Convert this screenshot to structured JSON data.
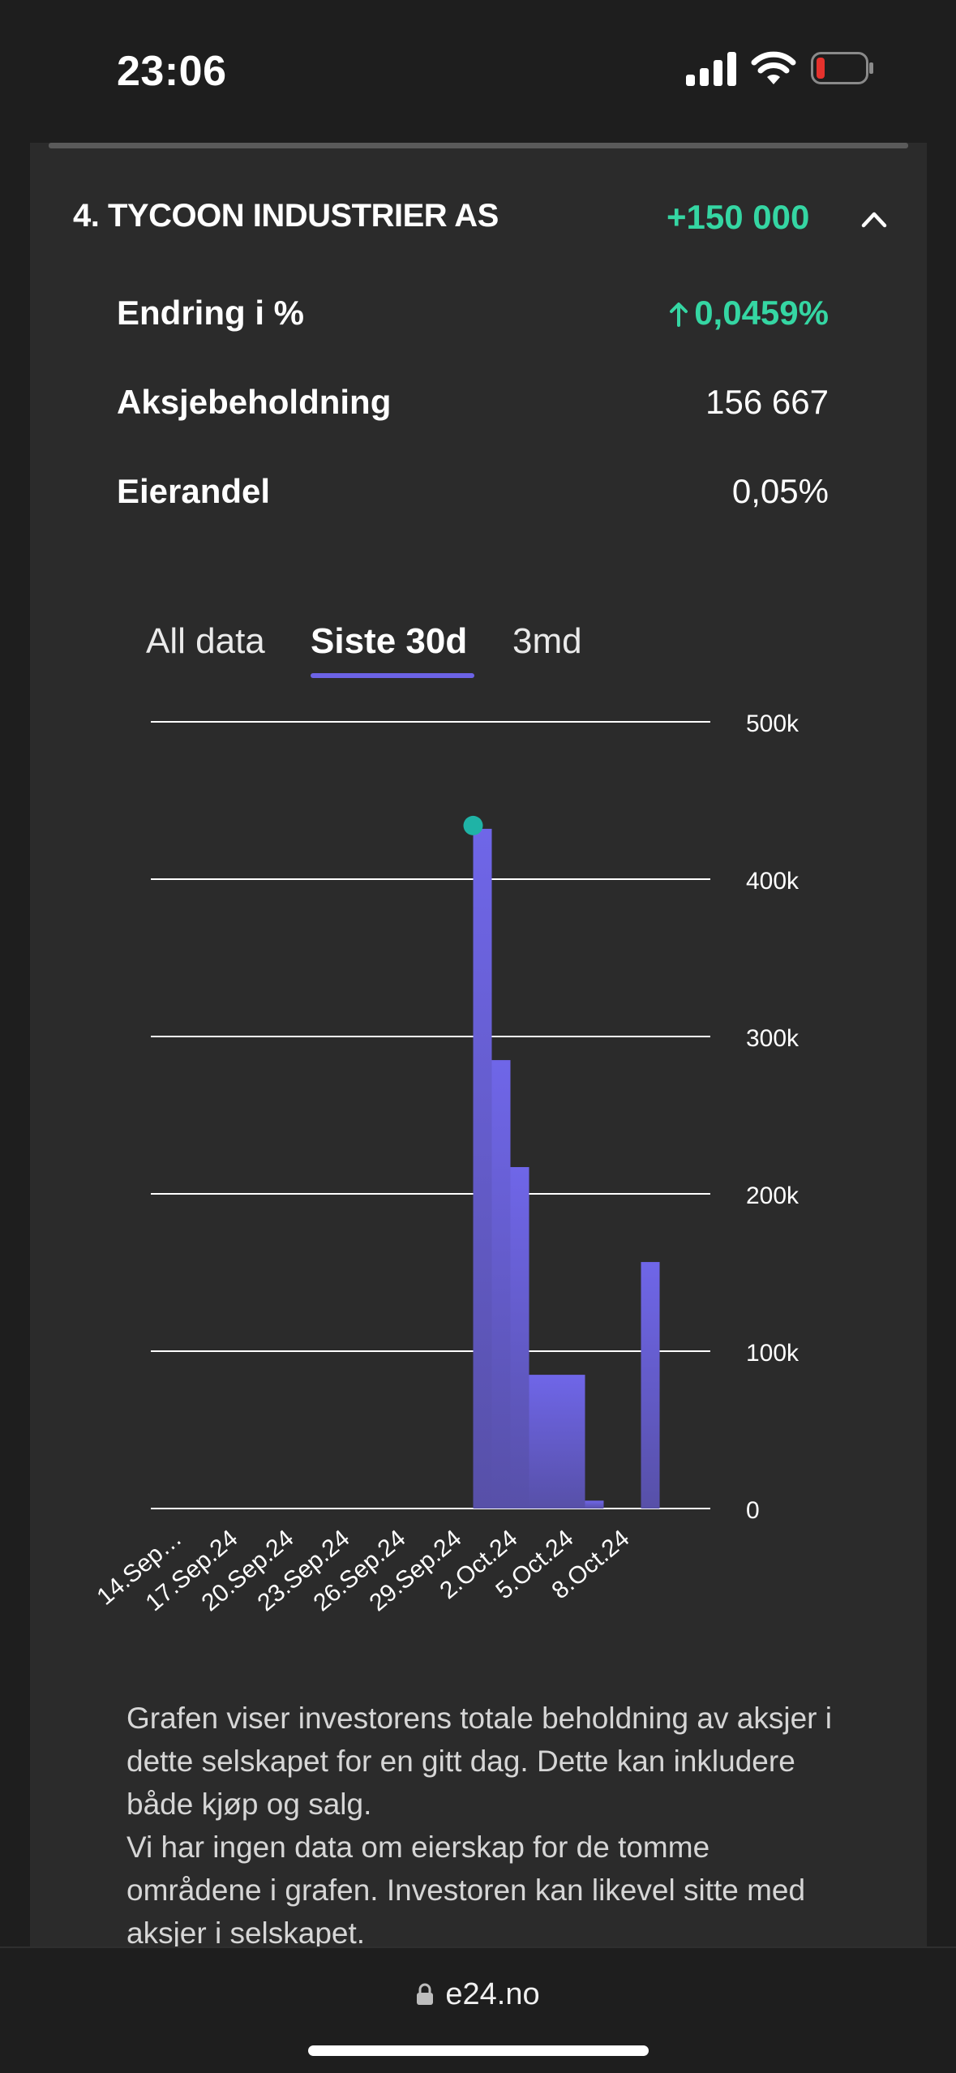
{
  "status_bar": {
    "time": "23:06",
    "icons": [
      "cellular-signal-icon",
      "wifi-icon",
      "battery-low-icon"
    ],
    "battery_color": "#e5322d"
  },
  "holding": {
    "title": "4. TYCOON INDUSTRIER AS",
    "change_abs": "+150 000",
    "expand_icon": "chevron-up-icon",
    "rows": [
      {
        "label": "Endring i %",
        "value": "0,0459%",
        "icon": "arrow-up-icon"
      },
      {
        "label": "Aksjebeholdning",
        "value": "156 667"
      },
      {
        "label": "Eierandel",
        "value": "0,05%"
      }
    ],
    "accent_green": "#35d6a3"
  },
  "tabs": [
    {
      "label": "All data",
      "active": false
    },
    {
      "label": "Siste 30d",
      "active": true
    },
    {
      "label": "3md",
      "active": false
    }
  ],
  "chart_data": {
    "type": "bar",
    "x_tick_labels": [
      "14.Sep…",
      "17.Sep.24",
      "20.Sep.24",
      "23.Sep.24",
      "26.Sep.24",
      "29.Sep.24",
      "2.Oct.24",
      "5.Oct.24",
      "8.Oct.24"
    ],
    "y_tick_labels": [
      "0",
      "100k",
      "200k",
      "300k",
      "400k",
      "500k"
    ],
    "ylim": [
      0,
      500000
    ],
    "series": [
      {
        "color": "#6c63e6",
        "points": [
          {
            "x": "1.Oct.24",
            "y": 432000
          },
          {
            "x": "2.Oct.24",
            "y": 285000
          },
          {
            "x": "3.Oct.24",
            "y": 217000
          },
          {
            "x": "4.Oct.24",
            "y": 85000
          },
          {
            "x": "5.Oct.24",
            "y": 85000
          },
          {
            "x": "6.Oct.24",
            "y": 85000
          },
          {
            "x": "7.Oct.24",
            "y": 5000
          },
          {
            "x": "10.Oct.24",
            "y": 156667
          }
        ]
      }
    ],
    "highlight_point": {
      "x": "1.Oct.24",
      "y": 432000,
      "color": "#1fb3a6"
    },
    "grid": true,
    "y_axis_position": "right"
  },
  "description": {
    "p1": "Grafen viser investorens totale beholdning av aksjer i dette selskapet for en gitt dag. Dette kan inkludere både kjøp og salg.",
    "p2": "Vi har ingen data om eierskap for de tomme områdene i grafen. Investoren kan likevel sitte med aksjer i selskapet."
  },
  "browser": {
    "url": "e24.no",
    "lock_icon": "lock-icon"
  }
}
